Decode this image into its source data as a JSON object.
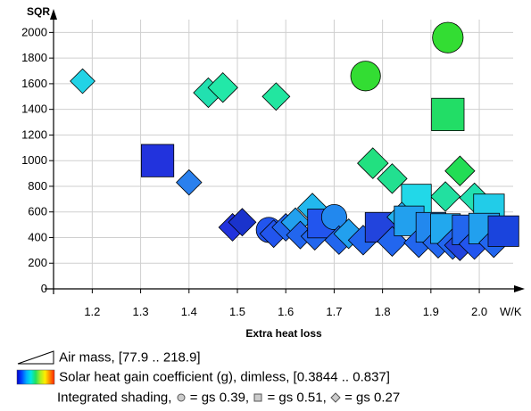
{
  "chart_data": {
    "type": "scatter",
    "ylabel": "SQR",
    "xlabel": "Extra heat loss",
    "x_unit": "W/K",
    "xlim": [
      1.12,
      2.07
    ],
    "ylim": [
      0,
      2100
    ],
    "x_ticks": [
      "1.2",
      "1.3",
      "1.4",
      "1.5",
      "1.6",
      "1.7",
      "1.8",
      "1.9",
      "2.0"
    ],
    "y_ticks": [
      "0",
      "200",
      "400",
      "600",
      "800",
      "1000",
      "1200",
      "1400",
      "1600",
      "1800",
      "2000"
    ],
    "grid": true,
    "size_encoding": "Air mass",
    "size_range": [
      77.9,
      218.9
    ],
    "color_encoding": "Solar heat gain coefficient (g), dimless",
    "color_range": [
      0.3844,
      0.837
    ],
    "shape_encoding": "Integrated shading",
    "shape_map": {
      "circle": 0.39,
      "square": 0.51,
      "diamond": 0.27
    },
    "points": [
      {
        "x": 1.18,
        "y": 1620,
        "shape": "diamond",
        "size": 0.32,
        "color": "#22d3e6"
      },
      {
        "x": 1.335,
        "y": 1000,
        "shape": "square",
        "size": 0.95,
        "color": "#2233dd"
      },
      {
        "x": 1.4,
        "y": 830,
        "shape": "diamond",
        "size": 0.35,
        "color": "#2a80ee"
      },
      {
        "x": 1.44,
        "y": 1530,
        "shape": "diamond",
        "size": 0.55,
        "color": "#22e0b0"
      },
      {
        "x": 1.47,
        "y": 1570,
        "shape": "diamond",
        "size": 0.55,
        "color": "#22e8a8"
      },
      {
        "x": 1.58,
        "y": 1500,
        "shape": "diamond",
        "size": 0.45,
        "color": "#22e6a0"
      },
      {
        "x": 1.765,
        "y": 1660,
        "shape": "circle",
        "size": 0.8,
        "color": "#33dd33"
      },
      {
        "x": 1.935,
        "y": 1960,
        "shape": "circle",
        "size": 0.85,
        "color": "#33dd33"
      },
      {
        "x": 1.935,
        "y": 1360,
        "shape": "square",
        "size": 0.95,
        "color": "#22dd66"
      },
      {
        "x": 1.78,
        "y": 980,
        "shape": "diamond",
        "size": 0.6,
        "color": "#22e080"
      },
      {
        "x": 1.82,
        "y": 860,
        "shape": "diamond",
        "size": 0.55,
        "color": "#22e090"
      },
      {
        "x": 1.96,
        "y": 920,
        "shape": "diamond",
        "size": 0.55,
        "color": "#22dd55"
      },
      {
        "x": 1.93,
        "y": 720,
        "shape": "diamond",
        "size": 0.55,
        "color": "#22e0a0"
      },
      {
        "x": 1.87,
        "y": 700,
        "shape": "square",
        "size": 0.8,
        "color": "#22d8e8"
      },
      {
        "x": 1.99,
        "y": 710,
        "shape": "diamond",
        "size": 0.55,
        "color": "#22e0b0"
      },
      {
        "x": 2.02,
        "y": 620,
        "shape": "square",
        "size": 0.85,
        "color": "#22cce8"
      },
      {
        "x": 1.49,
        "y": 480,
        "shape": "diamond",
        "size": 0.45,
        "color": "#2233dd"
      },
      {
        "x": 1.51,
        "y": 520,
        "shape": "diamond",
        "size": 0.45,
        "color": "#1a33cc"
      },
      {
        "x": 1.565,
        "y": 460,
        "shape": "circle",
        "size": 0.55,
        "color": "#2255ee"
      },
      {
        "x": 1.575,
        "y": 430,
        "shape": "diamond",
        "size": 0.45,
        "color": "#2255ee"
      },
      {
        "x": 1.6,
        "y": 480,
        "shape": "diamond",
        "size": 0.45,
        "color": "#2266ee"
      },
      {
        "x": 1.62,
        "y": 520,
        "shape": "diamond",
        "size": 0.5,
        "color": "#22a0ee"
      },
      {
        "x": 1.63,
        "y": 420,
        "shape": "diamond",
        "size": 0.45,
        "color": "#2266ee"
      },
      {
        "x": 1.655,
        "y": 630,
        "shape": "diamond",
        "size": 0.55,
        "color": "#22b8ee"
      },
      {
        "x": 1.66,
        "y": 410,
        "shape": "diamond",
        "size": 0.45,
        "color": "#2266ee"
      },
      {
        "x": 1.675,
        "y": 510,
        "shape": "square",
        "size": 0.75,
        "color": "#2255ee"
      },
      {
        "x": 1.7,
        "y": 560,
        "shape": "circle",
        "size": 0.55,
        "color": "#2288ee"
      },
      {
        "x": 1.71,
        "y": 380,
        "shape": "diamond",
        "size": 0.5,
        "color": "#2266ee"
      },
      {
        "x": 1.73,
        "y": 430,
        "shape": "diamond",
        "size": 0.55,
        "color": "#22a0ee"
      },
      {
        "x": 1.76,
        "y": 380,
        "shape": "diamond",
        "size": 0.55,
        "color": "#2266ee"
      },
      {
        "x": 1.795,
        "y": 480,
        "shape": "square",
        "size": 0.8,
        "color": "#2244dd"
      },
      {
        "x": 1.82,
        "y": 370,
        "shape": "diamond",
        "size": 0.55,
        "color": "#2266ee"
      },
      {
        "x": 1.84,
        "y": 560,
        "shape": "diamond",
        "size": 0.55,
        "color": "#22b0ee"
      },
      {
        "x": 1.855,
        "y": 530,
        "shape": "square",
        "size": 0.8,
        "color": "#22a0ee"
      },
      {
        "x": 1.875,
        "y": 360,
        "shape": "diamond",
        "size": 0.55,
        "color": "#2266ee"
      },
      {
        "x": 1.9,
        "y": 480,
        "shape": "square",
        "size": 0.8,
        "color": "#2288ee"
      },
      {
        "x": 1.915,
        "y": 360,
        "shape": "diamond",
        "size": 0.6,
        "color": "#2266ee"
      },
      {
        "x": 1.93,
        "y": 470,
        "shape": "square",
        "size": 0.8,
        "color": "#22a8ee"
      },
      {
        "x": 1.945,
        "y": 350,
        "shape": "diamond",
        "size": 0.6,
        "color": "#2266ee"
      },
      {
        "x": 1.96,
        "y": 340,
        "shape": "diamond",
        "size": 0.6,
        "color": "#2244dd"
      },
      {
        "x": 1.975,
        "y": 460,
        "shape": "square",
        "size": 0.8,
        "color": "#2266ee"
      },
      {
        "x": 1.99,
        "y": 350,
        "shape": "diamond",
        "size": 0.6,
        "color": "#2255ee"
      },
      {
        "x": 2.01,
        "y": 470,
        "shape": "square",
        "size": 0.85,
        "color": "#22a0ee"
      },
      {
        "x": 2.03,
        "y": 360,
        "shape": "diamond",
        "size": 0.55,
        "color": "#2266ee"
      },
      {
        "x": 2.05,
        "y": 450,
        "shape": "square",
        "size": 0.85,
        "color": "#1a44dd"
      }
    ]
  },
  "legend": {
    "size_label": "Air mass, [77.9 .. 218.9]",
    "color_label": "Solar heat gain coefficient (g), dimless, [0.3844 .. 0.837]",
    "shape_prefix": "Integrated shading,",
    "shape_circle": "= gs 0.39,",
    "shape_square": "= gs 0.51,",
    "shape_diamond": "= gs 0.27",
    "colors": [
      "#0000cc",
      "#0044ff",
      "#00aaff",
      "#00e8e0",
      "#22e060",
      "#aaee22",
      "#ffee00",
      "#ff8800",
      "#ff2200"
    ]
  }
}
